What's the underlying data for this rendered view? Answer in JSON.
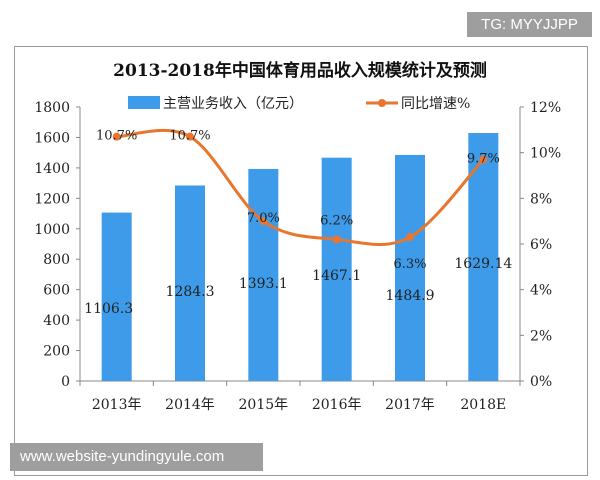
{
  "watermarks": {
    "top_right": "TG: MYYJJPP",
    "bottom_left": "www.website-yundingyule.com"
  },
  "chart_data": {
    "type": "bar+line",
    "title": "2013-2018年中国体育用品收入规模统计及预测",
    "categories": [
      "2013年",
      "2014年",
      "2015年",
      "2016年",
      "2017年",
      "2018E"
    ],
    "series": [
      {
        "name": "主营业务收入（亿元）",
        "type": "bar",
        "axis": "left",
        "color": "#3d9be9",
        "values": [
          1106.3,
          1284.3,
          1393.1,
          1467.1,
          1484.9,
          1629.14
        ],
        "labels": [
          "1106.3",
          "1284.3",
          "1393.1",
          "1467.1",
          "1484.9",
          "1629.14"
        ]
      },
      {
        "name": "同比增速%",
        "type": "line",
        "axis": "right",
        "color": "#e8762f",
        "values": [
          10.7,
          10.7,
          7.0,
          6.2,
          6.3,
          9.7
        ],
        "labels": [
          "10.7%",
          "10.7%",
          "7.0%",
          "6.2%",
          "6.3%",
          "9.7%"
        ]
      }
    ],
    "y_left": {
      "range": [
        0,
        1800
      ],
      "ticks": [
        "0",
        "200",
        "400",
        "600",
        "800",
        "1000",
        "1200",
        "1400",
        "1600",
        "1800"
      ]
    },
    "y_right": {
      "range": [
        0,
        12
      ],
      "ticks": [
        "0%",
        "2%",
        "4%",
        "6%",
        "8%",
        "10%",
        "12%"
      ]
    },
    "grid": false,
    "legend": "top"
  }
}
